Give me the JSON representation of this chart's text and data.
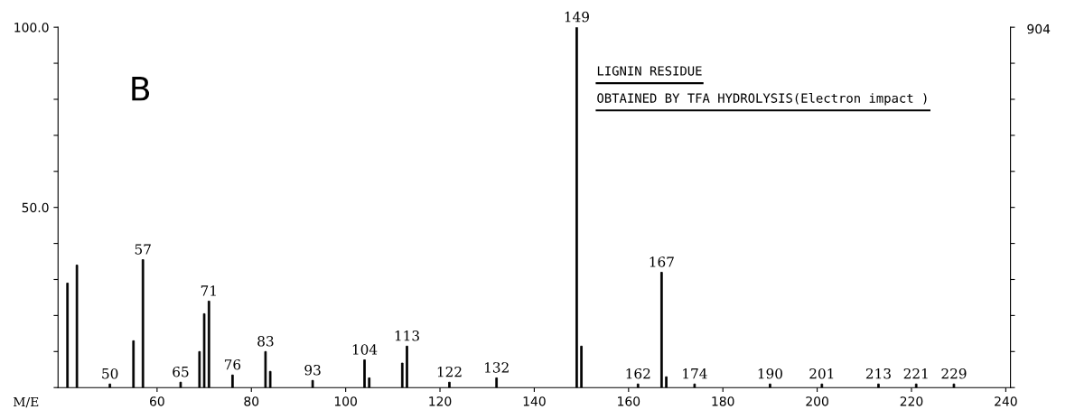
{
  "chart_data": {
    "type": "bar",
    "xlabel": "M/E",
    "x": [
      41,
      43,
      50,
      55,
      57,
      65,
      69,
      70,
      71,
      76,
      83,
      84,
      93,
      104,
      105,
      112,
      113,
      122,
      132,
      149,
      150,
      162,
      167,
      168,
      174,
      190,
      201,
      213,
      221,
      229
    ],
    "values": [
      29,
      34,
      1,
      13,
      35.5,
      1.5,
      10,
      20.5,
      24,
      3.5,
      10,
      4.5,
      2,
      7.7,
      2.7,
      6.8,
      11.5,
      1.5,
      2.7,
      100,
      11.5,
      1,
      32,
      3,
      1,
      1,
      1,
      1,
      1,
      1
    ],
    "color": "#000000",
    "xlim": [
      39,
      241
    ],
    "xticks": [
      60,
      80,
      100,
      120,
      140,
      160,
      180,
      200,
      220,
      240
    ],
    "ylim": [
      0,
      100
    ],
    "yticks": [
      {
        "value": 0,
        "label": null
      },
      {
        "value": 10,
        "label": null
      },
      {
        "value": 20,
        "label": null
      },
      {
        "value": 30,
        "label": null
      },
      {
        "value": 40,
        "label": null
      },
      {
        "value": 50,
        "label": "50.0"
      },
      {
        "value": 60,
        "label": null
      },
      {
        "value": 70,
        "label": null
      },
      {
        "value": 80,
        "label": null
      },
      {
        "value": 90,
        "label": null
      },
      {
        "value": 100,
        "label": "100.0"
      }
    ],
    "grid": false,
    "legend": false,
    "annotations": [
      "B",
      "LIGNIN RESIDUE",
      "OBTAINED BY TFA HYDROLYSIS(Electron impact )",
      "904",
      {
        "text": "50",
        "x": 50,
        "y": 1
      },
      {
        "text": "57",
        "x": 57,
        "y": 35.5
      },
      {
        "text": "65",
        "x": 65,
        "y": 1.5
      },
      {
        "text": "71",
        "x": 71,
        "y": 24
      },
      {
        "text": "76",
        "x": 76,
        "y": 3.5
      },
      {
        "text": "83",
        "x": 83,
        "y": 10
      },
      {
        "text": "93",
        "x": 93,
        "y": 2
      },
      {
        "text": "104",
        "x": 104,
        "y": 7.7
      },
      {
        "text": "113",
        "x": 113,
        "y": 11.5
      },
      {
        "text": "122",
        "x": 122,
        "y": 1.5
      },
      {
        "text": "132",
        "x": 132,
        "y": 2.7
      },
      {
        "text": "149",
        "x": 149,
        "y": 100
      },
      {
        "text": "162",
        "x": 162,
        "y": 1
      },
      {
        "text": "167",
        "x": 167,
        "y": 32
      },
      {
        "text": "174",
        "x": 174,
        "y": 1
      },
      {
        "text": "190",
        "x": 190,
        "y": 1
      },
      {
        "text": "201",
        "x": 201,
        "y": 1
      },
      {
        "text": "213",
        "x": 213,
        "y": 1
      },
      {
        "text": "221",
        "x": 221,
        "y": 1
      },
      {
        "text": "229",
        "x": 229,
        "y": 1
      }
    ]
  }
}
